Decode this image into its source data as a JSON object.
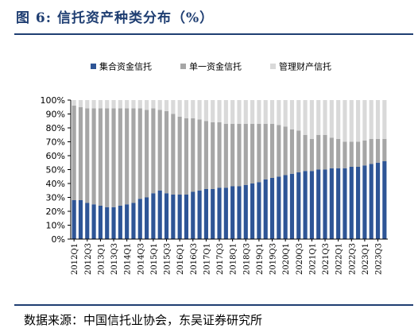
{
  "figure": {
    "title": "图 6:  信托资产种类分布（%）",
    "source": "数据来源：中国信托业协会，东吴证券研究所"
  },
  "colors": {
    "collective": "#2e5596",
    "single": "#a6a6a6",
    "management": "#d9d9d9",
    "title": "#1f3e72"
  },
  "chart_data": {
    "type": "bar",
    "stacked": true,
    "ylim": [
      0,
      100
    ],
    "yticks": [
      "0%",
      "10%",
      "20%",
      "30%",
      "40%",
      "50%",
      "60%",
      "70%",
      "80%",
      "90%",
      "100%"
    ],
    "legend_position": "top",
    "grid": false,
    "categories": [
      "2012Q1",
      "2012Q2",
      "2012Q3",
      "2012Q4",
      "2013Q1",
      "2013Q2",
      "2013Q3",
      "2013Q4",
      "2014Q1",
      "2014Q2",
      "2014Q3",
      "2014Q4",
      "2015Q1",
      "2015Q2",
      "2015Q3",
      "2015Q4",
      "2016Q1",
      "2016Q2",
      "2016Q3",
      "2016Q4",
      "2017Q1",
      "2017Q2",
      "2017Q3",
      "2017Q4",
      "2018Q1",
      "2018Q2",
      "2018Q3",
      "2018Q4",
      "2019Q1",
      "2019Q2",
      "2019Q3",
      "2019Q4",
      "2020Q1",
      "2020Q2",
      "2020Q3",
      "2020Q4",
      "2021Q1",
      "2021Q2",
      "2021Q3",
      "2021Q4",
      "2022Q1",
      "2022Q2",
      "2022Q3",
      "2022Q4",
      "2023Q1",
      "2023Q2",
      "2023Q3",
      "2023Q4"
    ],
    "tick_labels": [
      "2012Q1",
      "2012Q3",
      "2013Q1",
      "2013Q3",
      "2014Q1",
      "2014Q3",
      "2015Q1",
      "2015Q3",
      "2016Q1",
      "2016Q3",
      "2017Q1",
      "2017Q3",
      "2018Q1",
      "2018Q3",
      "2019Q1",
      "2019Q3",
      "2020Q1",
      "2020Q3",
      "2021Q1",
      "2021Q3",
      "2022Q1",
      "2022Q3",
      "2023Q1",
      "2023Q3"
    ],
    "series": [
      {
        "name": "集合资金信托",
        "color_key": "collective",
        "values": [
          28,
          28,
          26,
          25,
          24,
          23,
          23,
          24,
          25,
          26,
          29,
          30,
          33,
          35,
          33,
          32,
          32,
          32,
          34,
          35,
          36,
          36,
          37,
          37,
          38,
          38,
          39,
          40,
          41,
          43,
          44,
          45,
          46,
          47,
          48,
          49,
          49,
          50,
          50,
          51,
          51,
          51,
          52,
          52,
          53,
          54,
          55,
          56
        ]
      },
      {
        "name": "单一资金信托",
        "color_key": "single",
        "values": [
          68,
          67,
          68,
          69,
          70,
          71,
          71,
          70,
          69,
          68,
          65,
          63,
          61,
          58,
          59,
          58,
          56,
          55,
          53,
          51,
          49,
          48,
          47,
          46,
          45,
          45,
          44,
          43,
          42,
          40,
          39,
          37,
          35,
          32,
          30,
          26,
          23,
          25,
          25,
          22,
          21,
          19,
          18,
          18,
          18,
          18,
          17,
          16
        ]
      },
      {
        "name": "管理财产信托",
        "color_key": "management",
        "values": [
          4,
          5,
          6,
          6,
          6,
          6,
          6,
          6,
          6,
          6,
          6,
          7,
          6,
          7,
          8,
          10,
          12,
          13,
          13,
          14,
          15,
          16,
          16,
          17,
          17,
          17,
          17,
          17,
          17,
          17,
          17,
          18,
          19,
          21,
          22,
          25,
          28,
          25,
          25,
          27,
          28,
          30,
          30,
          30,
          29,
          28,
          28,
          28
        ]
      }
    ]
  }
}
